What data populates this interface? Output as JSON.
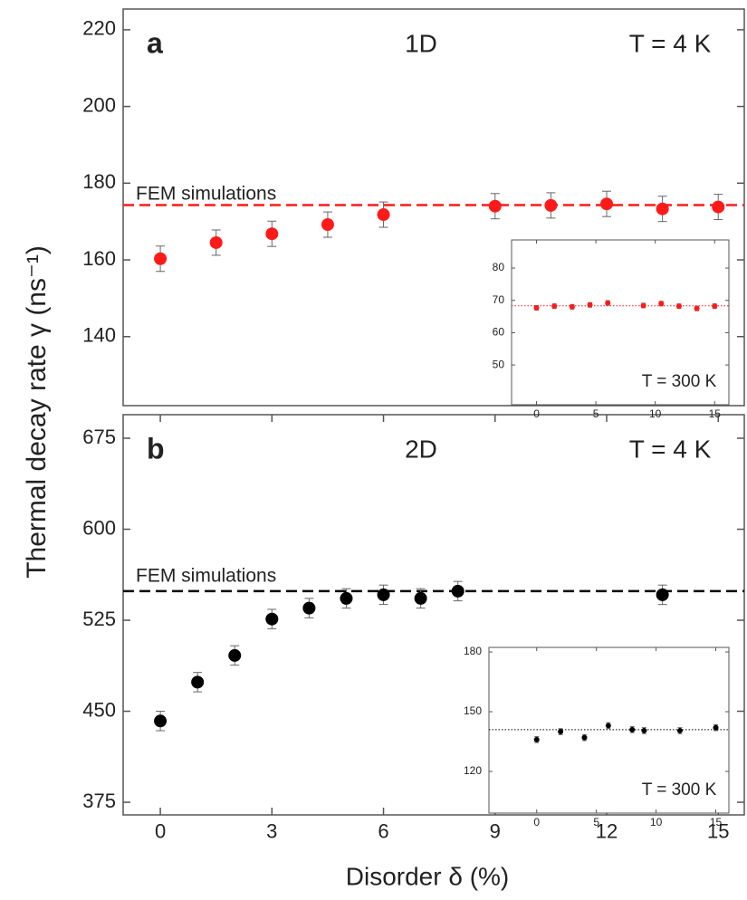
{
  "chart_data": [
    {
      "type": "scatter",
      "panel_label": "a",
      "title": "1D",
      "annotation": "T = 4 K",
      "ylabel": "Thermal decay rate γ (ns⁻¹)",
      "color": "#ff1a1a",
      "x": [
        0,
        1.5,
        3,
        4.5,
        6,
        9,
        10.5,
        12,
        13.5,
        15
      ],
      "values": [
        160.3,
        164.5,
        166.8,
        169.2,
        171.8,
        174,
        174.2,
        174.6,
        173.3,
        173.8
      ],
      "errors": [
        3.3,
        3.3,
        3.3,
        3.3,
        3.3,
        3.3,
        3.3,
        3.3,
        3.3,
        3.3
      ],
      "xlim": [
        -1,
        15.7
      ],
      "ylim": [
        122,
        225.4
      ],
      "yticks": [
        140,
        160,
        180,
        200,
        220
      ],
      "reference": {
        "label": "FEM simulations",
        "value": 174.3
      }
    },
    {
      "type": "scatter",
      "panel_label": "b",
      "title": "2D",
      "annotation": "T = 4 K",
      "xlabel": "Disorder δ (%)",
      "color": "#000000",
      "x": [
        0,
        1,
        2,
        3,
        4,
        5,
        6,
        7,
        8,
        13.5
      ],
      "values": [
        442,
        474,
        496,
        526,
        535,
        543,
        546,
        543,
        549,
        546
      ],
      "errors": [
        8,
        8,
        8,
        8,
        8,
        8,
        8,
        8,
        8,
        8
      ],
      "xlim": [
        -1,
        15.7
      ],
      "xticks": [
        0,
        3,
        6,
        9,
        12,
        15
      ],
      "ylim": [
        364.6,
        694.4
      ],
      "yticks": [
        375,
        450,
        525,
        600,
        675
      ],
      "reference": {
        "label": "FEM simulations",
        "value": 549
      }
    },
    {
      "type": "scatter",
      "annotation": "T = 300 K",
      "color": "#ff1a1a",
      "x": [
        0,
        1.5,
        3,
        4.5,
        6,
        9,
        10.5,
        12,
        13.5,
        15
      ],
      "values": [
        67.7,
        68.2,
        68,
        68.6,
        69.2,
        68.4,
        69,
        68.2,
        67.5,
        68.2
      ],
      "errors": [
        0.7,
        0.7,
        0.7,
        0.7,
        0.7,
        0.7,
        0.7,
        0.7,
        0.7,
        0.7
      ],
      "xlim": [
        -2.1,
        16.2
      ],
      "xticks": [
        0,
        5,
        10,
        15
      ],
      "ylim": [
        37.7,
        88.7
      ],
      "yticks": [
        50,
        60,
        70,
        80
      ],
      "reference": {
        "value": 68.3
      }
    },
    {
      "type": "scatter",
      "annotation": "T = 300 K",
      "color": "#000000",
      "x": [
        0,
        2,
        4,
        6,
        8,
        9,
        12,
        15
      ],
      "values": [
        136,
        140,
        137,
        143,
        141,
        140.5,
        140.5,
        142
      ],
      "errors": [
        1.5,
        1.5,
        1.5,
        1.5,
        1.5,
        1.5,
        1.5,
        1.5
      ],
      "xlim": [
        -4,
        16.1
      ],
      "xticks": [
        0,
        5,
        10,
        15
      ],
      "ylim": [
        99.1,
        182.3
      ],
      "yticks": [
        120,
        150,
        180
      ],
      "reference": {
        "value": 141
      }
    }
  ]
}
